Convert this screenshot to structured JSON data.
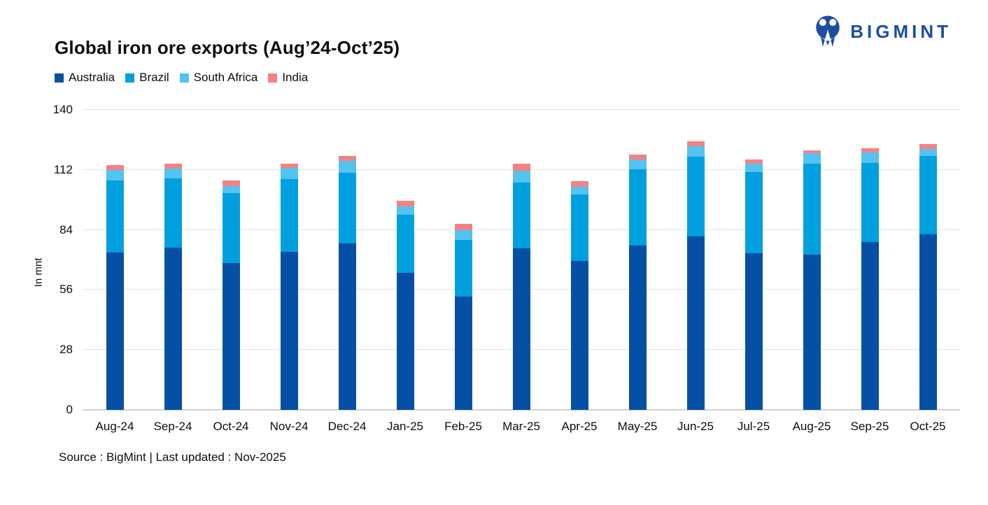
{
  "logo": {
    "text": "BIGMINT",
    "color": "#1d4fa1"
  },
  "ui": {
    "source_note": "Source : BigMint | Last updated : Nov-2025"
  },
  "chart_data": {
    "type": "bar",
    "stacked": true,
    "title": "Global iron ore exports (Aug’24-Oct’25)",
    "xlabel": "",
    "ylabel": "In mnt",
    "ylim": [
      0,
      140
    ],
    "yticks": [
      0,
      28,
      56,
      84,
      112,
      140
    ],
    "grid": "horizontal",
    "legend_position": "top-left",
    "categories": [
      "Aug-24",
      "Sep-24",
      "Oct-24",
      "Nov-24",
      "Dec-24",
      "Jan-25",
      "Feb-25",
      "Mar-25",
      "Apr-25",
      "May-25",
      "Jun-25",
      "Jul-25",
      "Aug-25",
      "Sep-25",
      "Oct-25"
    ],
    "series": [
      {
        "name": "Australia",
        "color": "#0550a5",
        "values": [
          73.3,
          75.7,
          68.5,
          73.7,
          77.8,
          63.9,
          52.9,
          75.4,
          69.6,
          76.6,
          80.8,
          73.2,
          72.6,
          78.4,
          81.8
        ]
      },
      {
        "name": "Brazil",
        "color": "#009fdf",
        "values": [
          33.6,
          32.3,
          32.8,
          34.0,
          32.9,
          27.1,
          26.3,
          30.7,
          30.9,
          35.6,
          37.3,
          37.8,
          42.3,
          36.7,
          36.8
        ]
      },
      {
        "name": "South Africa",
        "color": "#55c3f0",
        "values": [
          4.9,
          4.6,
          3.3,
          5.2,
          5.6,
          3.9,
          4.6,
          5.4,
          3.7,
          4.7,
          4.8,
          3.8,
          4.8,
          4.9,
          3.1
        ]
      },
      {
        "name": "India",
        "color": "#f48282",
        "values": [
          2.4,
          2.2,
          2.6,
          2.0,
          2.3,
          2.8,
          2.9,
          3.4,
          2.6,
          2.3,
          2.3,
          2.0,
          1.4,
          2.0,
          2.3
        ]
      }
    ],
    "totals": [
      114.2,
      114.8,
      107.2,
      114.9,
      118.6,
      97.7,
      86.7,
      114.9,
      106.8,
      119.2,
      125.2,
      116.8,
      121.1,
      122.0,
      124.0
    ]
  }
}
